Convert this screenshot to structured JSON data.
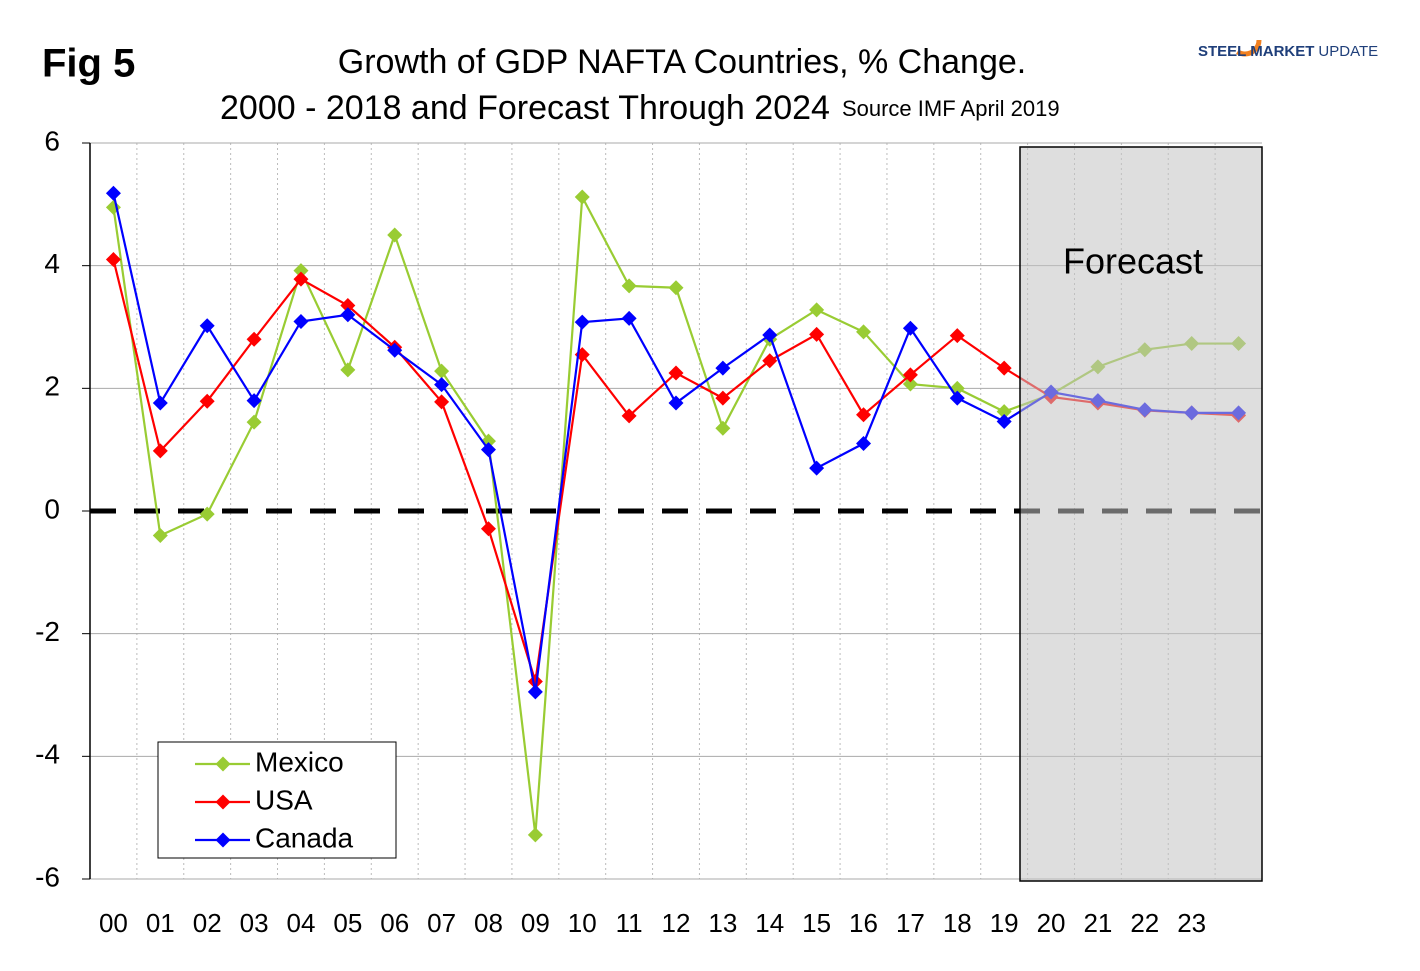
{
  "chart_data": {
    "type": "line",
    "fig_label": "Fig 5",
    "title": "Growth of GDP NAFTA Countries, % Change.",
    "subtitle": "2000 - 2018 and Forecast Through 2024",
    "source": "Source IMF April 2019",
    "logo": [
      "STEEL MARKET",
      "UPDATE"
    ],
    "annotation": "Forecast",
    "categories": [
      "00",
      "01",
      "02",
      "03",
      "04",
      "05",
      "06",
      "07",
      "08",
      "09",
      "10",
      "11",
      "12",
      "13",
      "14",
      "15",
      "16",
      "17",
      "18",
      "19",
      "20",
      "21",
      "22",
      "23",
      null
    ],
    "series": [
      {
        "name": "Mexico",
        "color": "#99cc33",
        "values": [
          4.95,
          -0.4,
          -0.05,
          1.45,
          3.92,
          2.3,
          4.5,
          2.28,
          1.14,
          -5.28,
          5.12,
          3.67,
          3.64,
          1.35,
          2.8,
          3.28,
          2.92,
          2.07,
          2.0,
          1.62,
          1.9,
          2.35,
          2.63,
          2.73,
          2.73
        ]
      },
      {
        "name": "USA",
        "color": "#ff0000",
        "values": [
          4.1,
          0.98,
          1.79,
          2.8,
          3.78,
          3.35,
          2.67,
          1.78,
          -0.29,
          -2.78,
          2.55,
          1.55,
          2.25,
          1.84,
          2.45,
          2.88,
          1.57,
          2.22,
          2.86,
          2.33,
          1.86,
          1.76,
          1.64,
          1.6,
          1.56
        ]
      },
      {
        "name": "Canada",
        "color": "#0000ff",
        "values": [
          5.18,
          1.76,
          3.02,
          1.8,
          3.09,
          3.2,
          2.62,
          2.06,
          1.0,
          -2.95,
          3.08,
          3.14,
          1.76,
          2.33,
          2.87,
          0.7,
          1.1,
          2.98,
          1.84,
          1.46,
          1.94,
          1.8,
          1.65,
          1.6,
          1.6
        ]
      }
    ],
    "ylim": [
      -6,
      6
    ],
    "yticks": [
      -6,
      -4,
      -2,
      0,
      2,
      4,
      6
    ],
    "grid": true,
    "legend": "lower left"
  }
}
